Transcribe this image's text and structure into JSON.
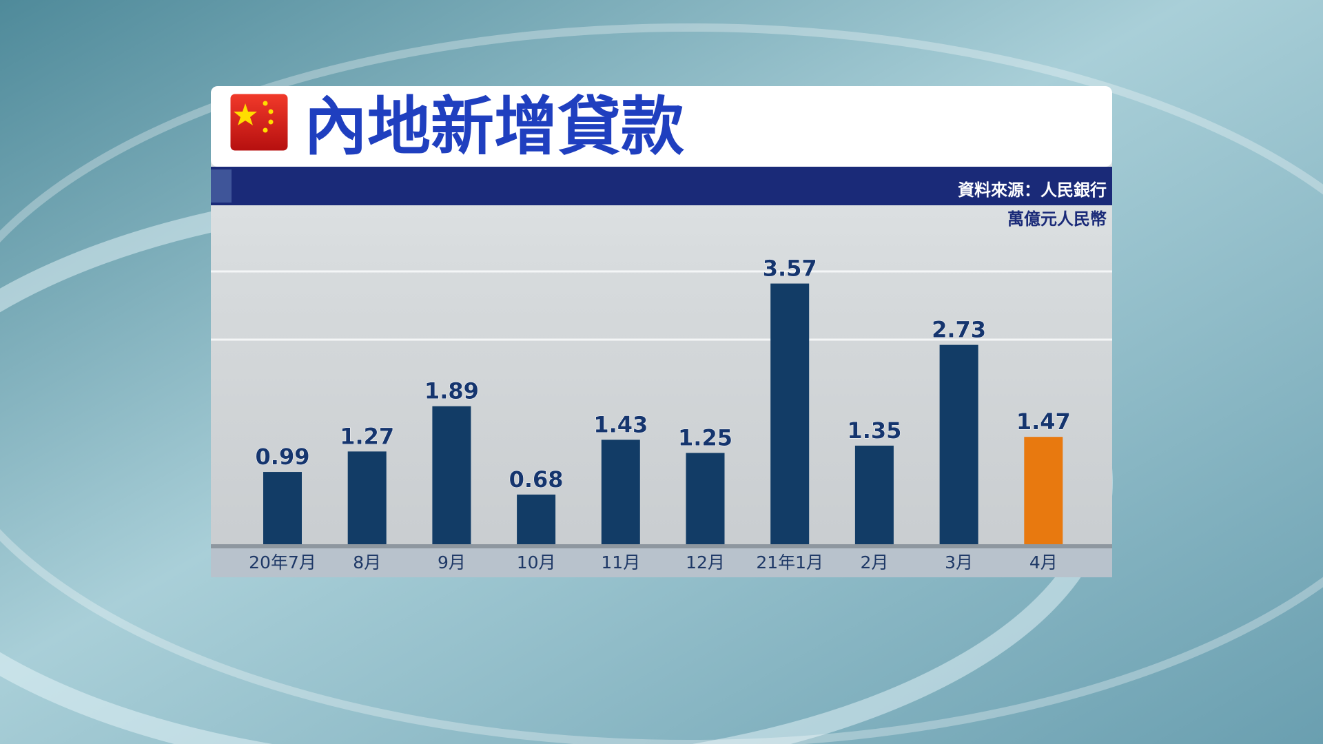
{
  "chart_data": {
    "type": "bar",
    "title": "內地新增貸款",
    "source": "資料來源：人民銀行",
    "unit": "萬億元人民幣",
    "categories": [
      "20年7月",
      "8月",
      "9月",
      "10月",
      "11月",
      "12月",
      "21年1月",
      "2月",
      "3月",
      "4月"
    ],
    "values": [
      0.99,
      1.27,
      1.89,
      0.68,
      1.43,
      1.25,
      3.57,
      1.35,
      2.73,
      1.47
    ],
    "colors": [
      "#123c66",
      "#123c66",
      "#123c66",
      "#123c66",
      "#123c66",
      "#123c66",
      "#123c66",
      "#123c66",
      "#123c66",
      "#e8790f"
    ],
    "ylim": [
      0,
      4
    ]
  }
}
